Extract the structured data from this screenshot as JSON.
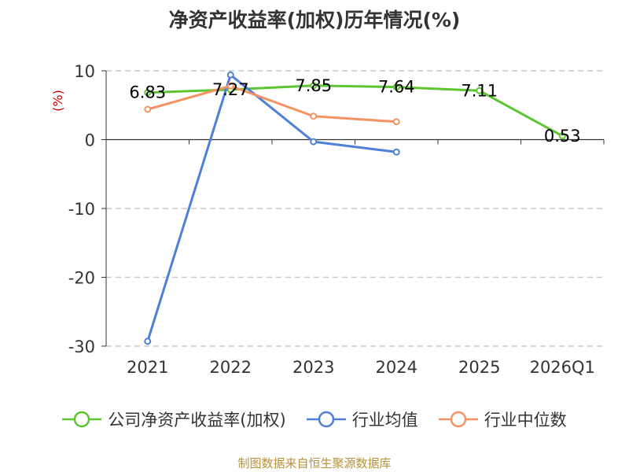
{
  "title": "净资产收益率(加权)历年情况(%)",
  "source": "制图数据来自恒生聚源数据库",
  "colors": {
    "company": "#5cc530",
    "industry_avg": "#4f80d8",
    "industry_median": "#f59264",
    "grid": "#c8c8c8",
    "axis": "#333333",
    "unit": "#cc0000"
  },
  "chart_data": {
    "type": "line",
    "ylabel": "(%)",
    "ylim": [
      -30,
      10
    ],
    "yticks": [
      10,
      0,
      -10,
      -20,
      -30
    ],
    "categories": [
      "2021",
      "2022",
      "2023",
      "2024",
      "2025",
      "2026Q1"
    ],
    "grid": true,
    "legend_position": "bottom",
    "series": [
      {
        "name": "公司净资产收益率(加权)",
        "key": "company",
        "values": [
          6.83,
          7.27,
          7.85,
          7.64,
          7.11,
          0.53
        ],
        "labels": [
          "6.83",
          "7.27",
          "7.85",
          "7.64",
          "7.11",
          "0.53"
        ]
      },
      {
        "name": "行业均值",
        "key": "industry_avg",
        "values": [
          -29.3,
          9.4,
          -0.3,
          -1.8,
          null,
          null
        ]
      },
      {
        "name": "行业中位数",
        "key": "industry_median",
        "values": [
          4.4,
          7.8,
          3.4,
          2.6,
          null,
          null
        ]
      }
    ]
  }
}
